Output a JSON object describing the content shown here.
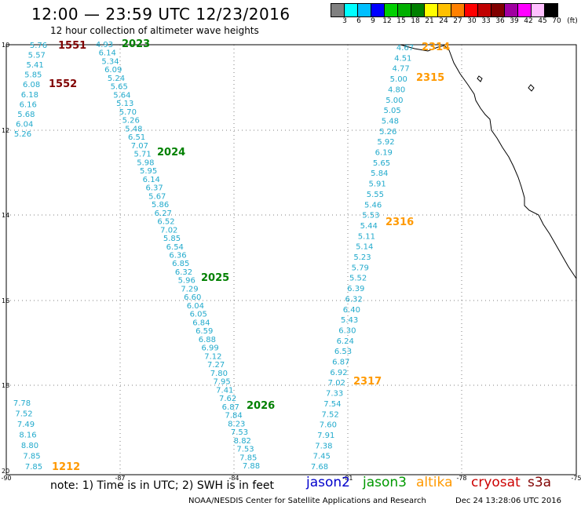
{
  "header": {
    "title": "12:00 — 23:59 UTC 12/23/2016",
    "subtitle": "12 hour collection of altimeter wave heights"
  },
  "legend": {
    "colors": [
      "#808080",
      "#00ffff",
      "#00bfff",
      "#0000ff",
      "#00d000",
      "#00b000",
      "#008000",
      "#ffff00",
      "#ffc000",
      "#ff8000",
      "#ff0000",
      "#c00000",
      "#800000",
      "#a000a0",
      "#ff00ff",
      "#ffc0ff",
      "#000000"
    ],
    "labels": [
      "3",
      "6",
      "9",
      "12",
      "15",
      "18",
      "21",
      "24",
      "27",
      "30",
      "33",
      "36",
      "39",
      "42",
      "45",
      "70",
      "(ft)"
    ]
  },
  "map": {
    "lat_ticks": [
      "10",
      "12",
      "14",
      "16",
      "18",
      "20"
    ],
    "lon_ticks": [
      "-90",
      "-87",
      "-84",
      "-81",
      "-78",
      "-75"
    ],
    "text_color": "#22aacc",
    "tracks": [
      {
        "id": "a",
        "values": [
          "5.76",
          "5.57",
          "5.41",
          "5.85",
          "6.08",
          "6.18",
          "6.16",
          "5.68",
          "6.04",
          "5.26"
        ]
      },
      {
        "id": "b",
        "values": [
          "4.93",
          "6.14",
          "5.34",
          "6.09",
          "5.24",
          "5.65",
          "5.64",
          "5.13",
          "5.70",
          "5.26",
          "5.48",
          "6.51",
          "7.07",
          "5.71",
          "5.98",
          "5.95",
          "6.14",
          "6.37",
          "5.67",
          "5.86",
          "6.27",
          "6.52",
          "7.02",
          "5.85",
          "6.54",
          "6.36",
          "6.85",
          "6.32",
          "5.96",
          "7.29",
          "6.60",
          "6.04",
          "6.05",
          "6.84",
          "6.59",
          "6.88",
          "6.99",
          "7.12",
          "7.27",
          "7.80",
          "7.95",
          "7.41",
          "7.62",
          "6.87",
          "7.84",
          "8.23",
          "7.53",
          "8.82",
          "7.53",
          "7.85",
          "7.88"
        ]
      },
      {
        "id": "c",
        "values": [
          "4.67",
          "4.51",
          "4.77",
          "5.00",
          "4.80",
          "5.00",
          "5.05",
          "5.48",
          "5.26",
          "5.92",
          "6.19",
          "5.65",
          "5.84",
          "5.91",
          "5.55",
          "5.46",
          "5.53",
          "5.44",
          "5.11",
          "5.14",
          "5.23",
          "5.79",
          "5.52",
          "6.39",
          "6.32",
          "6.40",
          "5.43",
          "6.30",
          "6.24",
          "6.53",
          "6.87",
          "6.92",
          "7.02",
          "7.33",
          "7.54",
          "7.52",
          "7.60",
          "7.91",
          "7.38",
          "7.45",
          "7.68"
        ]
      },
      {
        "id": "d",
        "values": [
          "7.78",
          "7.52",
          "7.49",
          "8.16",
          "8.80",
          "7.85",
          "7.85"
        ]
      }
    ],
    "pass_labels": [
      {
        "text": "1551",
        "color": "#800000"
      },
      {
        "text": "1552",
        "color": "#800000"
      },
      {
        "text": "2023",
        "color": "#008000"
      },
      {
        "text": "2024",
        "color": "#008000"
      },
      {
        "text": "2025",
        "color": "#008000"
      },
      {
        "text": "2026",
        "color": "#008000"
      },
      {
        "text": "2314",
        "color": "#ff9900"
      },
      {
        "text": "2315",
        "color": "#ff9900"
      },
      {
        "text": "2316",
        "color": "#ff9900"
      },
      {
        "text": "2317",
        "color": "#ff9900"
      },
      {
        "text": "1212",
        "color": "#ff9900"
      }
    ]
  },
  "footer": {
    "note": "note: 1) Time is in UTC; 2) SWH is in feet",
    "satellites": [
      {
        "name": "jason2",
        "color": "#0000cc"
      },
      {
        "name": "jason3",
        "color": "#009900"
      },
      {
        "name": "altika",
        "color": "#ff9900"
      },
      {
        "name": "cryosat",
        "color": "#cc0000"
      },
      {
        "name": "s3a",
        "color": "#800000"
      }
    ],
    "credit": "NOAA/NESDIS Center for Satellite Applications and Research",
    "timestamp": "Dec 24 13:28:06 UTC 2016"
  }
}
